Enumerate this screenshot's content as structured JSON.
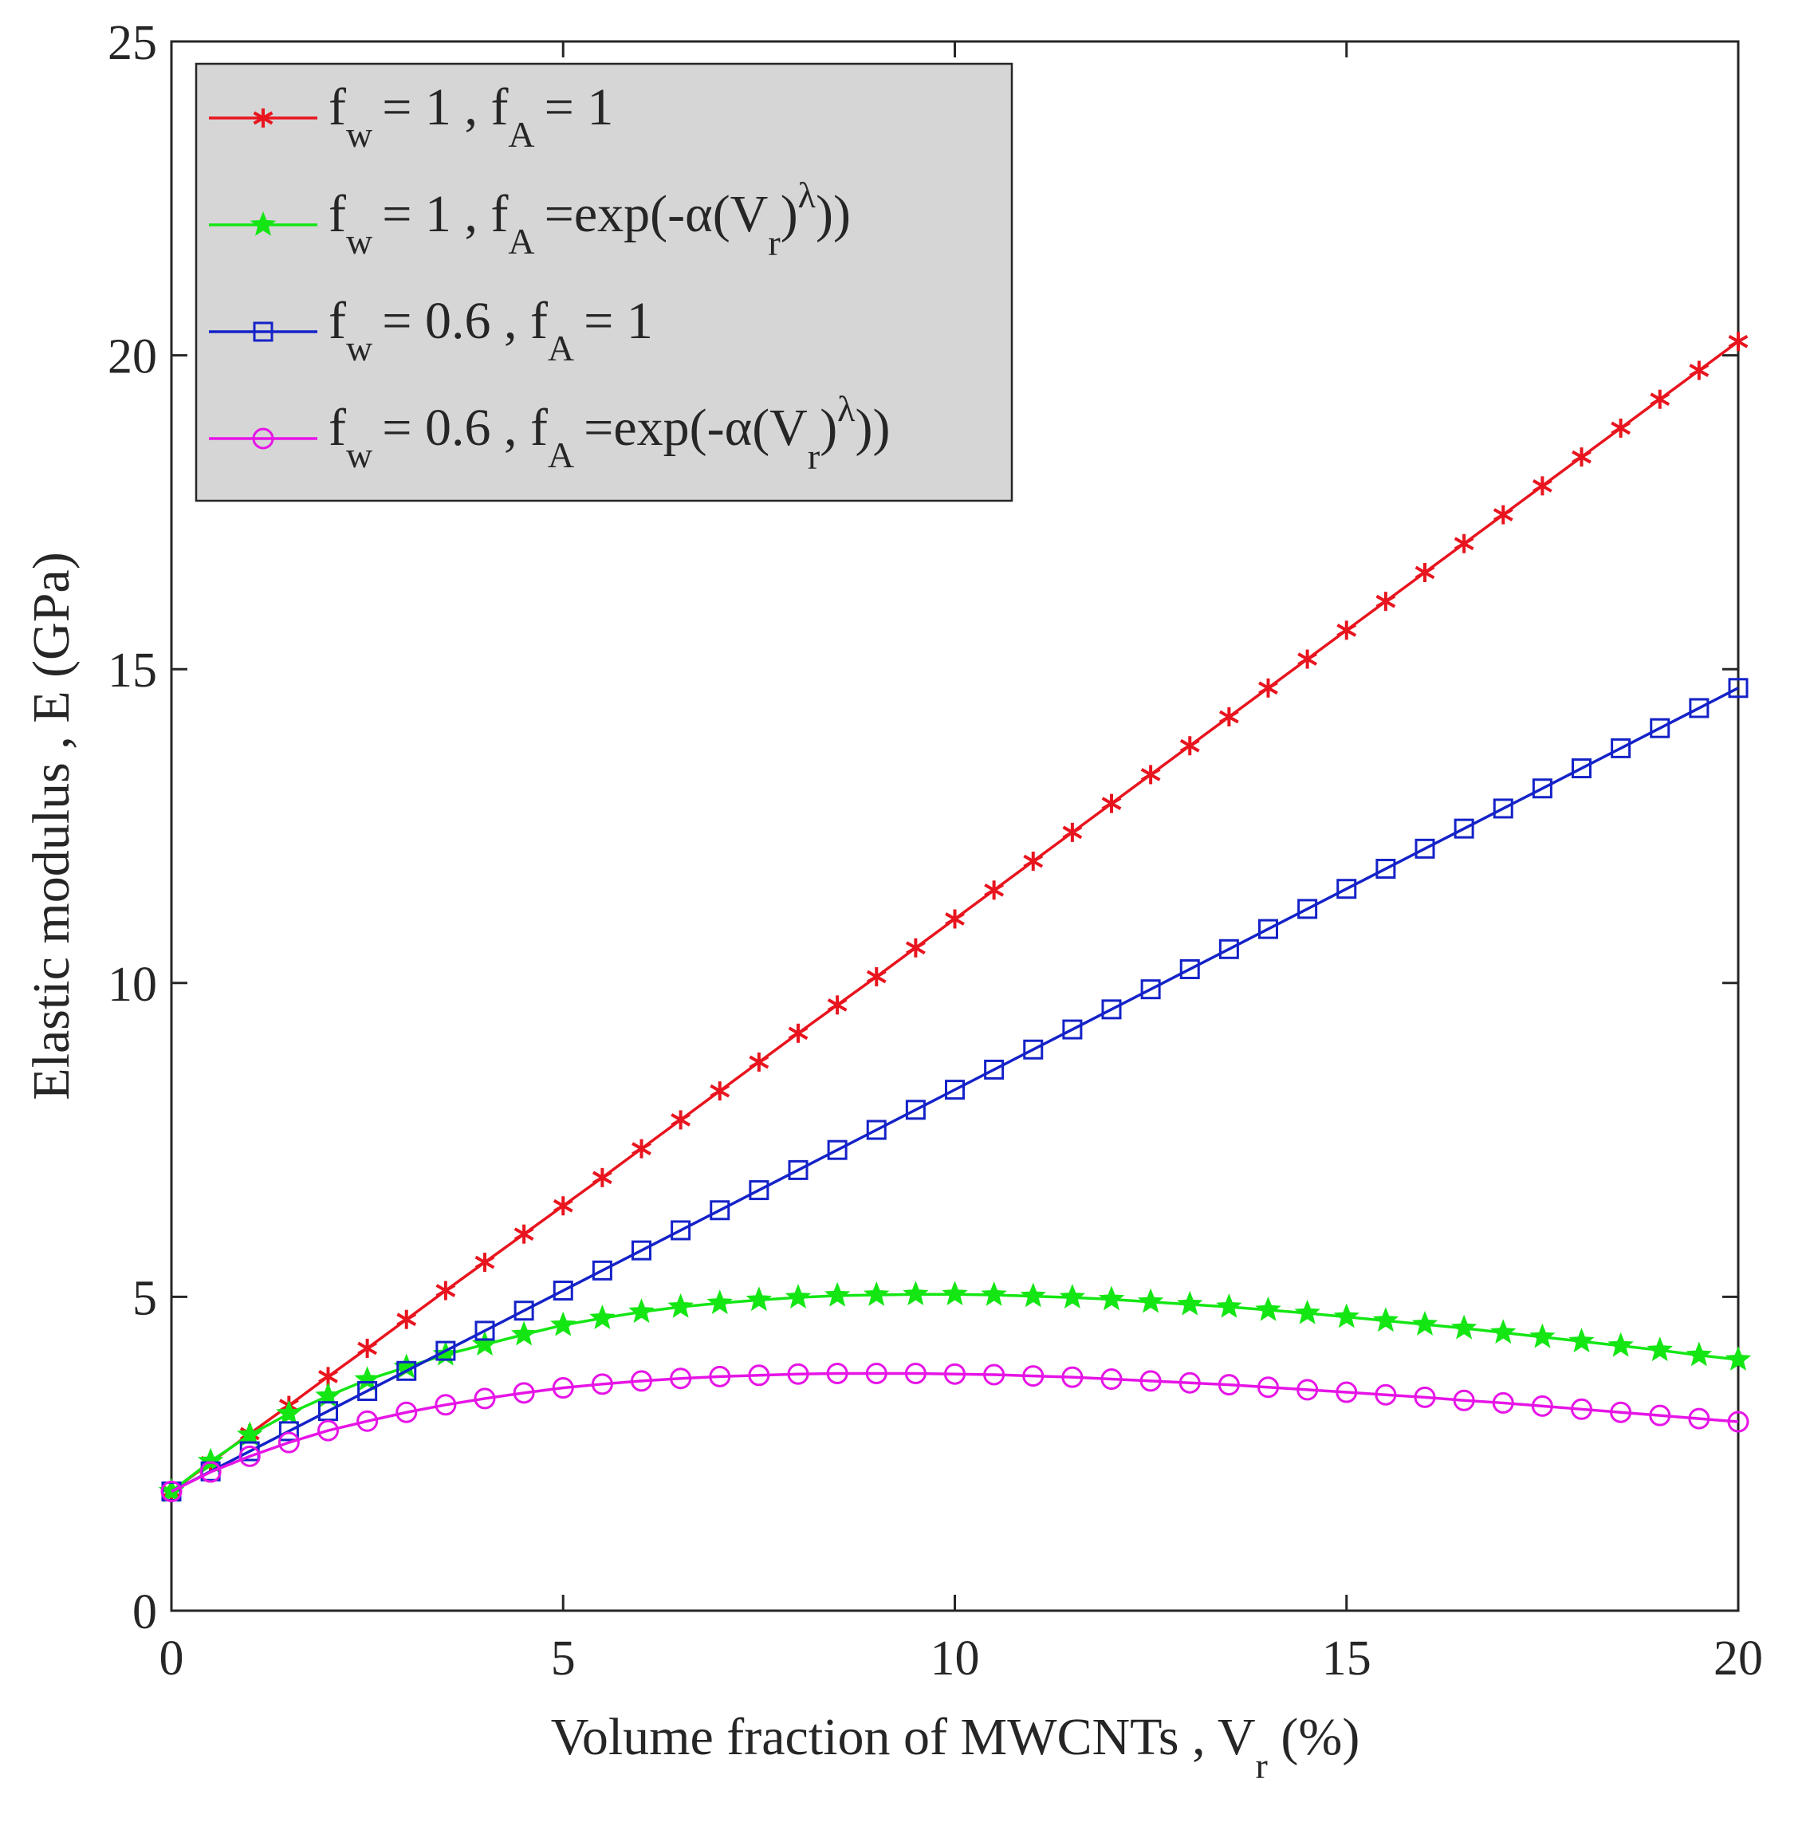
{
  "chart_data": {
    "type": "line",
    "xlabel": {
      "main": "Volume fraction of MWCNTs , V",
      "sub": "r",
      "tail": " (%)"
    },
    "ylabel": "Elastic modulus , E (GPa)",
    "xlim": [
      0,
      20
    ],
    "ylim": [
      0,
      25
    ],
    "x_ticks": [
      0,
      5,
      10,
      15,
      20
    ],
    "y_ticks": [
      0,
      5,
      10,
      15,
      20,
      25
    ],
    "x_tick_labels": [
      "0",
      "5",
      "10",
      "15",
      "20"
    ],
    "y_tick_labels": [
      "0",
      "5",
      "10",
      "15",
      "20",
      "25"
    ],
    "grid": false,
    "legend_position": "top-left",
    "x": [
      0,
      0.5,
      1,
      1.5,
      2,
      2.5,
      3,
      3.5,
      4,
      4.5,
      5,
      5.5,
      6,
      6.5,
      7,
      7.5,
      8,
      8.5,
      9,
      9.5,
      10,
      10.5,
      11,
      11.5,
      12,
      12.5,
      13,
      13.5,
      14,
      14.5,
      15,
      15.5,
      16,
      16.5,
      17,
      17.5,
      18,
      18.5,
      19,
      19.5,
      20
    ],
    "series": [
      {
        "legend": {
          "fw": "= 1 , f",
          "fa": "= 1"
        },
        "color": "#e8141e",
        "marker": "asterisk",
        "values": [
          1.9,
          2.36,
          2.82,
          3.27,
          3.73,
          4.18,
          4.64,
          5.1,
          5.55,
          6.0,
          6.45,
          6.9,
          7.36,
          7.82,
          8.28,
          8.74,
          9.2,
          9.65,
          10.1,
          10.56,
          11.02,
          11.48,
          11.94,
          12.4,
          12.86,
          13.32,
          13.78,
          14.24,
          14.7,
          15.16,
          15.62,
          16.08,
          16.54,
          17.0,
          17.46,
          17.92,
          18.38,
          18.84,
          19.3,
          19.76,
          20.22
        ]
      },
      {
        "legend": {
          "fw": "= 1 , f",
          "fa": "=exp(-α(V",
          "fa_sub": "r",
          "fa_mid": ")",
          "fa_sup": "λ",
          "fa_end": "))"
        },
        "color": "#14e614",
        "marker": "star",
        "values": [
          1.9,
          2.38,
          2.8,
          3.14,
          3.42,
          3.68,
          3.88,
          4.08,
          4.24,
          4.4,
          4.55,
          4.66,
          4.76,
          4.84,
          4.9,
          4.95,
          4.99,
          5.02,
          5.03,
          5.04,
          5.04,
          5.03,
          5.01,
          4.99,
          4.96,
          4.92,
          4.88,
          4.84,
          4.79,
          4.74,
          4.68,
          4.62,
          4.56,
          4.5,
          4.43,
          4.36,
          4.29,
          4.22,
          4.15,
          4.07,
          4.0
        ]
      },
      {
        "legend": {
          "fw": "= 0.6 , f",
          "fa": "= 1"
        },
        "color": "#1422c8",
        "marker": "square",
        "values": [
          1.9,
          2.22,
          2.54,
          2.86,
          3.18,
          3.5,
          3.82,
          4.14,
          4.46,
          4.78,
          5.1,
          5.42,
          5.74,
          6.06,
          6.38,
          6.7,
          7.02,
          7.34,
          7.66,
          7.98,
          8.3,
          8.62,
          8.94,
          9.26,
          9.58,
          9.9,
          10.22,
          10.54,
          10.86,
          11.18,
          11.5,
          11.82,
          12.14,
          12.46,
          12.78,
          13.1,
          13.42,
          13.74,
          14.06,
          14.38,
          14.7
        ]
      },
      {
        "legend": {
          "fw": "= 0.6 , f",
          "fa": "=exp(-α(V",
          "fa_sub": "r",
          "fa_mid": ")",
          "fa_sup": "λ",
          "fa_end": "))"
        },
        "color": "#e614e6",
        "marker": "circle",
        "values": [
          1.9,
          2.21,
          2.46,
          2.68,
          2.87,
          3.02,
          3.16,
          3.28,
          3.38,
          3.47,
          3.55,
          3.61,
          3.66,
          3.7,
          3.73,
          3.75,
          3.77,
          3.78,
          3.78,
          3.78,
          3.77,
          3.76,
          3.74,
          3.72,
          3.69,
          3.66,
          3.63,
          3.6,
          3.56,
          3.52,
          3.48,
          3.44,
          3.4,
          3.35,
          3.31,
          3.26,
          3.21,
          3.16,
          3.11,
          3.06,
          3.01
        ]
      }
    ]
  }
}
